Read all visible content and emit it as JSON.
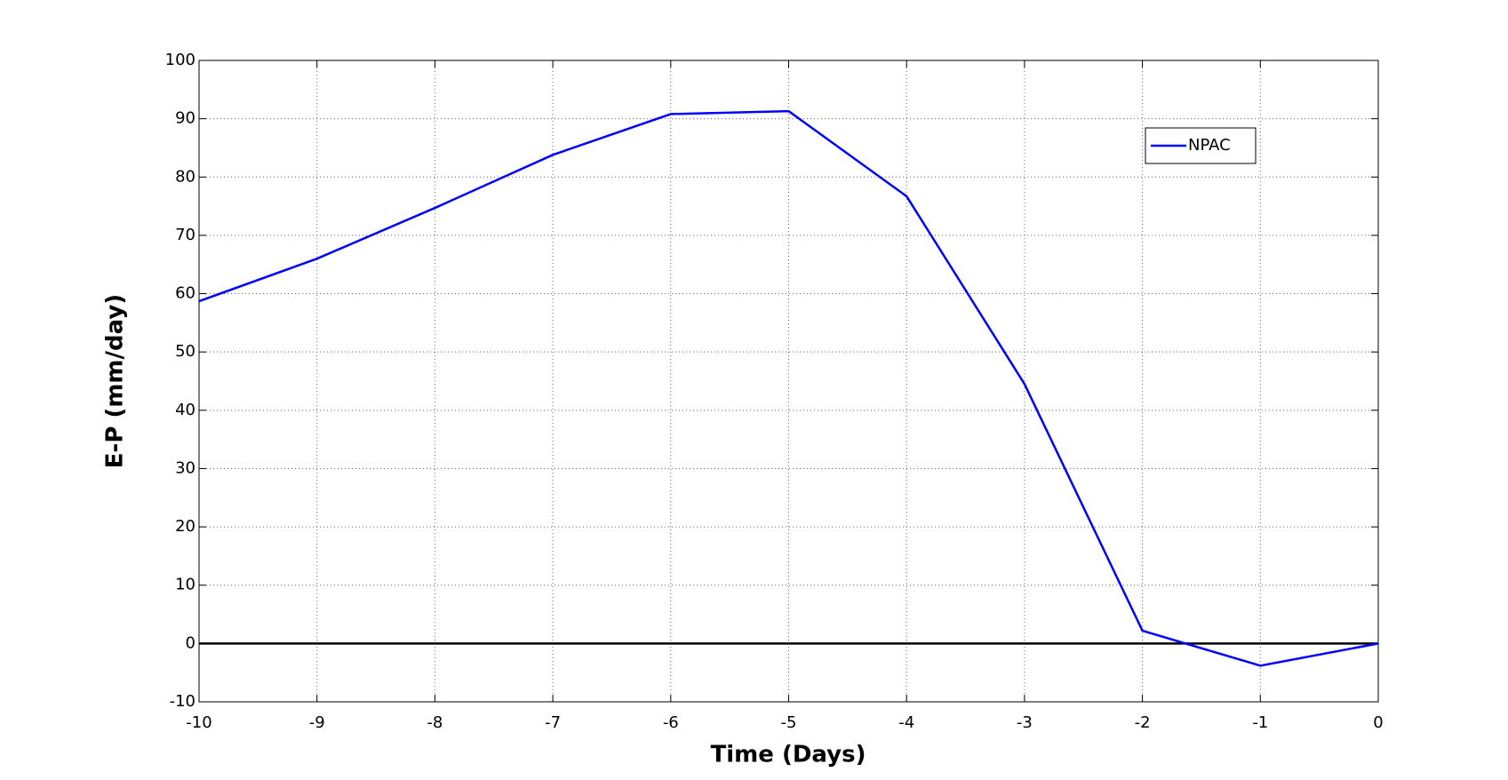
{
  "chart_data": {
    "type": "line",
    "x_label": "Time (Days)",
    "y_label": "E-P (mm/day)",
    "x": [
      -10,
      -9,
      -8,
      -7,
      -6,
      -5,
      -4,
      -3,
      -2,
      -1,
      0
    ],
    "series": [
      {
        "name": "NPAC",
        "color": "#0000ff",
        "values": [
          58.7,
          66,
          74.7,
          83.8,
          90.8,
          91.3,
          76.7,
          44.5,
          2.2,
          -3.8,
          0
        ]
      }
    ],
    "xlim": [
      -10,
      0
    ],
    "xticks": [
      -10,
      -9,
      -8,
      -7,
      -6,
      -5,
      -4,
      -3,
      -2,
      -1,
      0
    ],
    "ylim": [
      -10,
      100
    ],
    "yticks": [
      -10,
      0,
      10,
      20,
      30,
      40,
      50,
      60,
      70,
      80,
      90,
      100
    ],
    "grid": true,
    "reference_line": 0,
    "legend": "upper right"
  }
}
